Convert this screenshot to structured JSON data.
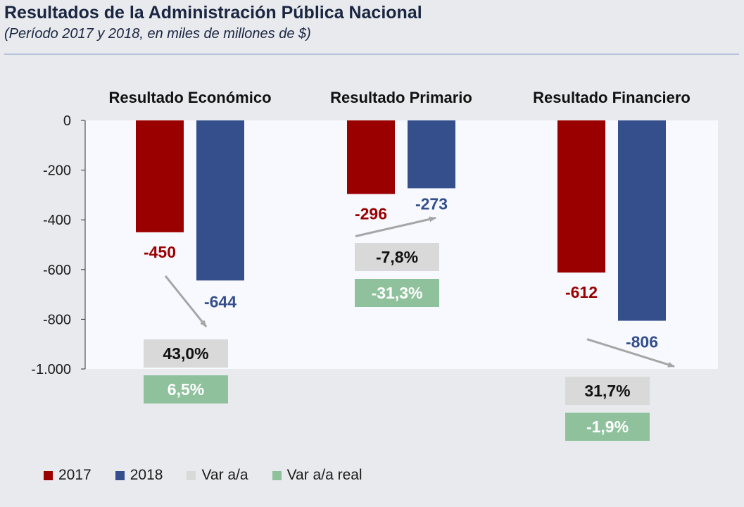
{
  "title": "Resultados de la Administración Pública Nacional",
  "subtitle": "(Período 2017 y 2018, en miles de millones de $)",
  "colors": {
    "y2017": "#9b0000",
    "y2018": "#344f8c",
    "var": "#d9d9d9",
    "var_real": "#8fc19d",
    "arrow": "#a6a6a6",
    "plot_bg": "#f7f9fe"
  },
  "legend": [
    {
      "label": "2017",
      "color": "#9b0000"
    },
    {
      "label": "2018",
      "color": "#344f8c"
    },
    {
      "label": "Var a/a",
      "color": "#d9d9d9"
    },
    {
      "label": "Var a/a real",
      "color": "#8fc19d"
    }
  ],
  "chart_data": {
    "type": "bar",
    "categories": [
      "Resultado Económico",
      "Resultado Primario",
      "Resultado Financiero"
    ],
    "series": [
      {
        "name": "2017",
        "values": [
          -450,
          -296,
          -612
        ],
        "labels": [
          "-450",
          "-296",
          "-612"
        ]
      },
      {
        "name": "2018",
        "values": [
          -644,
          -273,
          -806
        ],
        "labels": [
          "-644",
          "-273",
          "-806"
        ]
      }
    ],
    "var_aa": [
      "43,0%",
      "-7,8%",
      "31,7%"
    ],
    "var_aa_real": [
      "6,5%",
      "-31,3%",
      "-1,9%"
    ],
    "ylim": [
      -1000,
      0
    ],
    "yticks": [
      0,
      -200,
      -400,
      -600,
      -800,
      -1000
    ],
    "ytick_labels": [
      "0",
      "-200",
      "-400",
      "-600",
      "-800",
      "-1.000"
    ],
    "legend_position": "bottom-left"
  }
}
